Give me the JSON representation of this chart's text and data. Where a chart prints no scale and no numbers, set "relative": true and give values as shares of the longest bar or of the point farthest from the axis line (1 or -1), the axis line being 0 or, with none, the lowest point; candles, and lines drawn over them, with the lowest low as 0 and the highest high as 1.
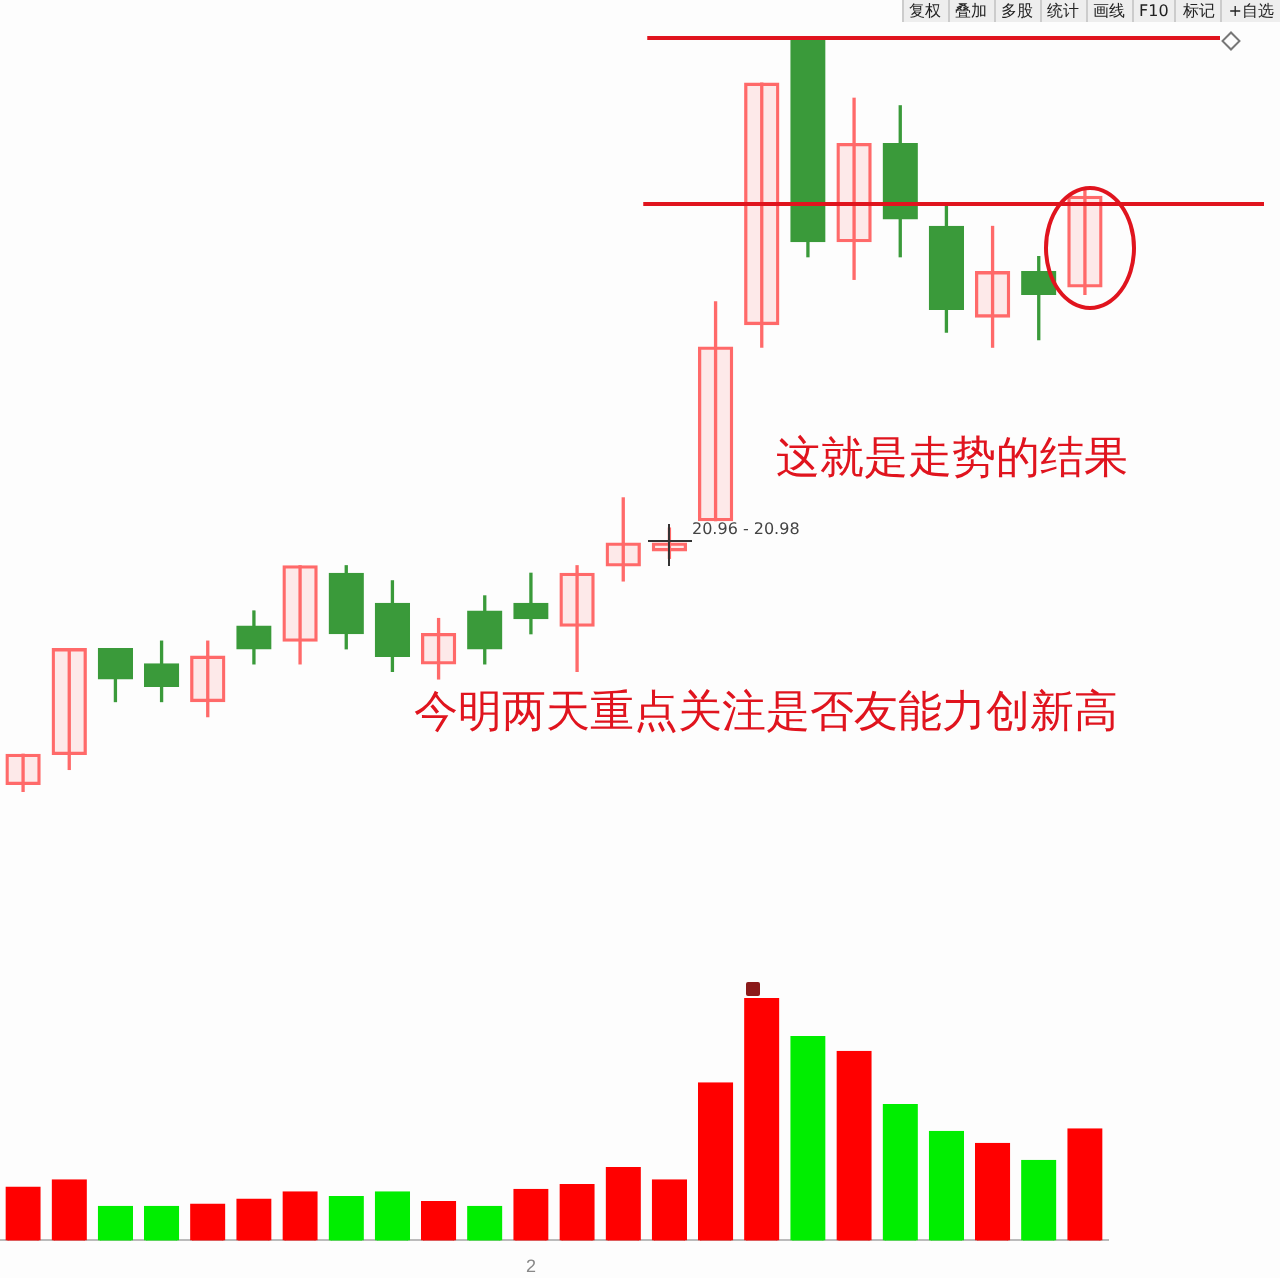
{
  "chart_data": [
    {
      "type": "candlestick",
      "relative": true,
      "legend": false,
      "categories": [
        null,
        null,
        null,
        null,
        null,
        null,
        null,
        null,
        null,
        null,
        null,
        null,
        null,
        null,
        null,
        null,
        null,
        null,
        null,
        null,
        null,
        null,
        null,
        null
      ],
      "ohlc": [
        [
          0.01,
          0.05,
          0,
          0.05
        ],
        [
          0.05,
          0.19,
          0.03,
          0.19
        ],
        [
          0.19,
          0.19,
          0.12,
          0.15
        ],
        [
          0.17,
          0.2,
          0.12,
          0.14
        ],
        [
          0.12,
          0.2,
          0.1,
          0.18
        ],
        [
          0.22,
          0.24,
          0.17,
          0.19
        ],
        [
          0.2,
          0.3,
          0.17,
          0.3
        ],
        [
          0.29,
          0.3,
          0.19,
          0.21
        ],
        [
          0.25,
          0.28,
          0.16,
          0.18
        ],
        [
          0.17,
          0.23,
          0.15,
          0.21
        ],
        [
          0.24,
          0.26,
          0.17,
          0.19
        ],
        [
          0.25,
          0.29,
          0.21,
          0.23
        ],
        [
          0.22,
          0.3,
          0.16,
          0.29
        ],
        [
          0.3,
          0.39,
          0.28,
          0.33
        ],
        [
          0.32,
          0.35,
          0.31,
          0.33
        ],
        [
          0.36,
          0.65,
          0.36,
          0.59
        ],
        [
          0.62,
          0.94,
          0.59,
          0.94
        ],
        [
          1,
          1,
          0.71,
          0.73
        ],
        [
          0.73,
          0.92,
          0.68,
          0.86
        ],
        [
          0.86,
          0.91,
          0.71,
          0.76
        ],
        [
          0.75,
          0.78,
          0.61,
          0.64
        ],
        [
          0.63,
          0.75,
          0.59,
          0.69
        ],
        [
          0.69,
          0.71,
          0.6,
          0.66
        ],
        [
          0.67,
          0.8,
          0.66,
          0.79
        ]
      ],
      "colors": [
        "#ff6a6a",
        "#ff6a6a",
        "#3a9a3a",
        "#3a9a3a",
        "#ff6a6a",
        "#3a9a3a",
        "#ff6a6a",
        "#3a9a3a",
        "#3a9a3a",
        "#ff6a6a",
        "#3a9a3a",
        "#3a9a3a",
        "#ff6a6a",
        "#ff6a6a",
        "#ff6a6a",
        "#ff6a6a",
        "#ff6a6a",
        "#3a9a3a",
        "#ff6a6a",
        "#3a9a3a",
        "#3a9a3a",
        "#ff6a6a",
        "#3a9a3a",
        "#ff6a6a"
      ],
      "ref_lines": [
        {
          "axis": "y",
          "value": 1,
          "color": "#e0141e"
        },
        {
          "axis": "y",
          "value": 0.78,
          "color": "#e0141e"
        }
      ],
      "annotations": [
        "复权",
        "叠加",
        "多股",
        "统计",
        "画线",
        "F10",
        "标记",
        "+自选",
        "20.96 - 20.98",
        "这就是走势的结果",
        "今明两天重点关注是否友能力创新高"
      ]
    },
    {
      "type": "bar",
      "relative": true,
      "legend": false,
      "categories": [
        null,
        null,
        null,
        null,
        null,
        null,
        null,
        null,
        null,
        null,
        null,
        "2",
        null,
        null,
        null,
        null,
        null,
        null,
        null,
        null,
        null,
        null,
        null,
        null
      ],
      "values": [
        0.22,
        0.25,
        0.14,
        0.14,
        0.15,
        0.17,
        0.2,
        0.18,
        0.2,
        0.16,
        0.14,
        0.21,
        0.23,
        0.3,
        0.25,
        0.65,
        1,
        0.84,
        0.78,
        0.56,
        0.45,
        0.4,
        0.33,
        0.46
      ],
      "colors": [
        "#ff0000",
        "#ff0000",
        "#00ee00",
        "#00ee00",
        "#ff0000",
        "#ff0000",
        "#ff0000",
        "#00ee00",
        "#00ee00",
        "#ff0000",
        "#00ee00",
        "#ff0000",
        "#ff0000",
        "#ff0000",
        "#ff0000",
        "#ff0000",
        "#ff0000",
        "#00ee00",
        "#ff0000",
        "#00ee00",
        "#00ee00",
        "#ff0000",
        "#00ee00",
        "#ff0000"
      ]
    }
  ]
}
